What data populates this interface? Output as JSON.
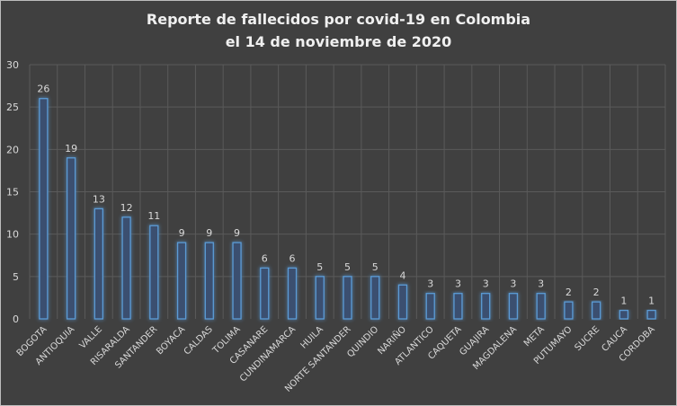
{
  "chart_data": {
    "type": "bar",
    "title": [
      "Reporte de fallecidos por covid-19 en Colombia",
      "el 14 de noviembre de 2020"
    ],
    "xlabel": "",
    "ylabel": "",
    "ylim": [
      0,
      30
    ],
    "yticks": [
      0,
      5,
      10,
      15,
      20,
      25,
      30
    ],
    "grid": true,
    "categories": [
      "BOGOTA",
      "ANTIOQUIA",
      "VALLE",
      "RISARALDA",
      "SANTANDER",
      "BOYACA",
      "CALDAS",
      "TOLIMA",
      "CASANARE",
      "CUNDINAMARCA",
      "HUILA",
      "NORTE SANTANDER",
      "QUINDIO",
      "NARIÑO",
      "ATLANTICO",
      "CAQUETA",
      "GUAJIRA",
      "MAGDALENA",
      "META",
      "PUTUMAYO",
      "SUCRE",
      "CAUCA",
      "CORDOBA"
    ],
    "values": [
      26,
      19,
      13,
      12,
      11,
      9,
      9,
      9,
      6,
      6,
      5,
      5,
      5,
      4,
      3,
      3,
      3,
      3,
      3,
      2,
      2,
      1,
      1
    ],
    "colors": {
      "background": "#404040",
      "bar_fill": "#3a5070",
      "bar_edge": "#5b9bd5",
      "text": "#d9d9d9",
      "grid": "#5a5a5a"
    }
  }
}
